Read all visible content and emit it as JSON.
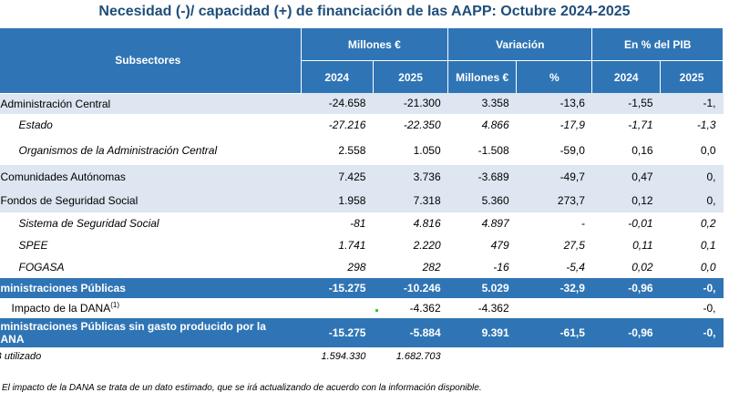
{
  "title": "Necesidad (-)/ capacidad (+) de financiación de las AAPP:  Octubre 2024-2025",
  "header": {
    "subsectores": "Subsectores",
    "millones": "Millones €",
    "variacion": "Variación",
    "pib": "En % del PIB",
    "y2024": "2024",
    "y2025": "2025",
    "var_millones": "Millones €",
    "var_pct": "%",
    "pib2024": "2024",
    "pib2025": "2025"
  },
  "rows": [
    {
      "label": "Administración Central",
      "m2024": "-24.658",
      "m2025": "-21.300",
      "vm": "3.358",
      "vp": "-13,6",
      "p2024": "-1,55",
      "p2025": "-1,"
    },
    {
      "label": "Estado",
      "m2024": "-27.216",
      "m2025": "-22.350",
      "vm": "4.866",
      "vp": "-17,9",
      "p2024": "-1,71",
      "p2025": "-1,3"
    },
    {
      "label": "Organismos de la Administración Central",
      "m2024": "2.558",
      "m2025": "1.050",
      "vm": "-1.508",
      "vp": "-59,0",
      "p2024": "0,16",
      "p2025": "0,0"
    },
    {
      "label": "Comunidades Autónomas",
      "m2024": "7.425",
      "m2025": "3.736",
      "vm": "-3.689",
      "vp": "-49,7",
      "p2024": "0,47",
      "p2025": "0,"
    },
    {
      "label": "Fondos de Seguridad Social",
      "m2024": "1.958",
      "m2025": "7.318",
      "vm": "5.360",
      "vp": "273,7",
      "p2024": "0,12",
      "p2025": "0,"
    },
    {
      "label": "Sistema de Seguridad Social",
      "m2024": "-81",
      "m2025": "4.816",
      "vm": "4.897",
      "vp": "-",
      "p2024": "-0,01",
      "p2025": "0,2"
    },
    {
      "label": "SPEE",
      "m2024": "1.741",
      "m2025": "2.220",
      "vm": "479",
      "vp": "27,5",
      "p2024": "0,11",
      "p2025": "0,1"
    },
    {
      "label": "FOGASA",
      "m2024": "298",
      "m2025": "282",
      "vm": "-16",
      "vp": "-5,4",
      "p2024": "0,02",
      "p2025": "0,0"
    },
    {
      "label": "ministraciones Públicas",
      "m2024": "-15.275",
      "m2025": "-10.246",
      "vm": "5.029",
      "vp": "-32,9",
      "p2024": "-0,96",
      "p2025": "-0,"
    },
    {
      "label": "Impacto de la DANA",
      "sup": "(1)",
      "m2024": "",
      "m2025": "-4.362",
      "vm": "-4.362",
      "vp": "",
      "p2024": "",
      "p2025": "-0,"
    },
    {
      "label": "ministraciones Públicas sin gasto producido por la",
      "label2": "ANA",
      "m2024": "-15.275",
      "m2025": "-5.884",
      "vm": "9.391",
      "vp": "-61,5",
      "p2024": "-0,96",
      "p2025": "-0,"
    },
    {
      "label": "B utilizado",
      "m2024": "1.594.330",
      "m2025": "1.682.703"
    }
  ],
  "note": "El impacto de la DANA se trata de un dato estimado, que se irá actualizando de acuerdo con la información disponible."
}
